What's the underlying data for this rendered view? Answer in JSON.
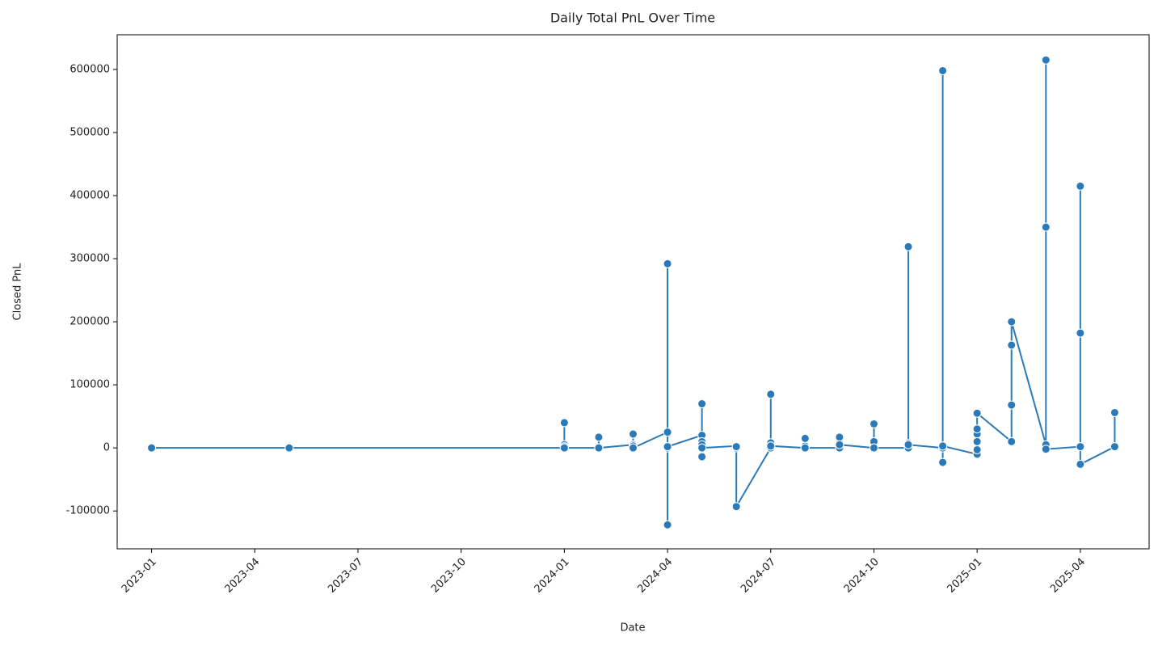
{
  "chart_data": {
    "type": "line",
    "title": "Daily Total PnL Over Time",
    "xlabel": "Date",
    "ylabel": "Closed PnL",
    "color": "#2a7ab9",
    "x": [
      "2023-01",
      "2023-05",
      "2024-01",
      "2024-01",
      "2024-01",
      "2024-01",
      "2024-01",
      "2024-01",
      "2024-02",
      "2024-02",
      "2024-02",
      "2024-02",
      "2024-03",
      "2024-03",
      "2024-03",
      "2024-03",
      "2024-03",
      "2024-03",
      "2024-04",
      "2024-04",
      "2024-04",
      "2024-04",
      "2024-04",
      "2024-04",
      "2024-05",
      "2024-05",
      "2024-05",
      "2024-05",
      "2024-05",
      "2024-05",
      "2024-05",
      "2024-06",
      "2024-06",
      "2024-06",
      "2024-06",
      "2024-07",
      "2024-07",
      "2024-07",
      "2024-07",
      "2024-07",
      "2024-07",
      "2024-08",
      "2024-08",
      "2024-08",
      "2024-08",
      "2024-08",
      "2024-09",
      "2024-09",
      "2024-09",
      "2024-09",
      "2024-09",
      "2024-10",
      "2024-10",
      "2024-10",
      "2024-10",
      "2024-10",
      "2024-10",
      "2024-11",
      "2024-11",
      "2024-11",
      "2024-11",
      "2024-11",
      "2024-11",
      "2024-12",
      "2024-12",
      "2024-12",
      "2024-12",
      "2024-12",
      "2024-12",
      "2024-12",
      "2025-01",
      "2025-01",
      "2025-01",
      "2025-01",
      "2025-01",
      "2025-01",
      "2025-02",
      "2025-02",
      "2025-02",
      "2025-02",
      "2025-03",
      "2025-03",
      "2025-03",
      "2025-03",
      "2025-04",
      "2025-04",
      "2025-04",
      "2025-04",
      "2025-05",
      "2025-05"
    ],
    "values": [
      0,
      0,
      0,
      5000,
      2000,
      0,
      40000,
      0,
      0,
      0,
      17000,
      0,
      5000,
      0,
      3000,
      0,
      22000,
      0,
      25000,
      0,
      -122000,
      0,
      292000,
      2000,
      20000,
      10000,
      0,
      -14000,
      5000,
      70000,
      0,
      3000,
      0,
      2000,
      -93000,
      0,
      0,
      8000,
      3000,
      85000,
      3000,
      0,
      3000,
      0,
      15000,
      0,
      0,
      8000,
      17000,
      0,
      5000,
      0,
      2000,
      10000,
      0,
      38000,
      0,
      0,
      3000,
      0,
      7000,
      319000,
      5000,
      0,
      3000,
      -23000,
      0,
      3000,
      598000,
      3000,
      -10000,
      22000,
      30000,
      10000,
      -3000,
      55000,
      10000,
      163000,
      68000,
      200000,
      5000,
      350000,
      615000,
      -2000,
      2000,
      415000,
      182000,
      -26000,
      2000,
      56000
    ],
    "xlim": [
      "2022-12",
      "2025-06"
    ],
    "xticks": [
      "2023-01",
      "2023-04",
      "2023-07",
      "2023-10",
      "2024-01",
      "2024-04",
      "2024-07",
      "2024-10",
      "2025-01",
      "2025-04"
    ],
    "ylim": [
      -160000,
      655000
    ],
    "yticks": [
      -100000,
      0,
      100000,
      200000,
      300000,
      400000,
      500000,
      600000
    ]
  }
}
